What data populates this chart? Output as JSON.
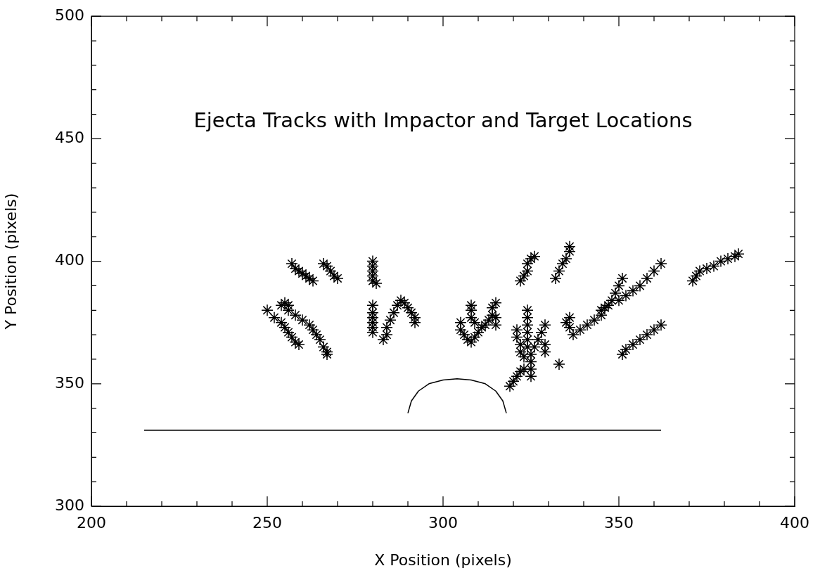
{
  "chart_data": {
    "type": "scatter",
    "title": "Ejecta Tracks with Impactor and Target Locations",
    "xlabel": "X Position (pixels)",
    "ylabel": "Y Position (pixels)",
    "xlim": [
      200,
      400
    ],
    "ylim": [
      300,
      500
    ],
    "xticks": [
      200,
      {
        "value": 210,
        "label": null
      },
      {
        "value": 220,
        "label": null
      },
      {
        "value": 230,
        "label": null
      },
      {
        "value": 240,
        "label": null
      },
      250,
      {
        "value": 260,
        "label": null
      },
      {
        "value": 270,
        "label": null
      },
      {
        "value": 280,
        "label": null
      },
      {
        "value": 290,
        "label": null
      },
      300,
      {
        "value": 310,
        "label": null
      },
      {
        "value": 320,
        "label": null
      },
      {
        "value": 330,
        "label": null
      },
      {
        "value": 340,
        "label": null
      },
      350,
      {
        "value": 360,
        "label": null
      },
      {
        "value": 370,
        "label": null
      },
      {
        "value": 380,
        "label": null
      },
      {
        "value": 390,
        "label": null
      },
      400
    ],
    "yticks": [
      300,
      {
        "value": 310,
        "label": null
      },
      {
        "value": 320,
        "label": null
      },
      {
        "value": 330,
        "label": null
      },
      {
        "value": 340,
        "label": null
      },
      350,
      {
        "value": 360,
        "label": null
      },
      {
        "value": 370,
        "label": null
      },
      {
        "value": 380,
        "label": null
      },
      {
        "value": 390,
        "label": null
      },
      400,
      {
        "value": 410,
        "label": null
      },
      {
        "value": 420,
        "label": null
      },
      {
        "value": 430,
        "label": null
      },
      {
        "value": 440,
        "label": null
      },
      450,
      {
        "value": 460,
        "label": null
      },
      {
        "value": 470,
        "label": null
      },
      {
        "value": 480,
        "label": null
      },
      {
        "value": 490,
        "label": null
      },
      500
    ],
    "grid": false,
    "legend": false,
    "series": [
      {
        "type": "scatter",
        "color": "#000000",
        "marker": "cross",
        "x": [
          257,
          258,
          259,
          260,
          261,
          262,
          263,
          266,
          267,
          268,
          269,
          270,
          280,
          280,
          280,
          280,
          280,
          281,
          250,
          252,
          254,
          255,
          256,
          257,
          258,
          259,
          254,
          255,
          256,
          256,
          258,
          260,
          262,
          263,
          264,
          265,
          266,
          267,
          267,
          280,
          280,
          280,
          280,
          280,
          280,
          283,
          284,
          284,
          285,
          286,
          287,
          288,
          289,
          290,
          291,
          292,
          292,
          305,
          305,
          306,
          307,
          308,
          309,
          310,
          311,
          308,
          308,
          308,
          309,
          312,
          313,
          314,
          314,
          315,
          315,
          315,
          322,
          323,
          324,
          324,
          325,
          326,
          332,
          333,
          334,
          335,
          336,
          336,
          321,
          321,
          322,
          322,
          323,
          324,
          324,
          324,
          324,
          324,
          324,
          325,
          325,
          325,
          325,
          326,
          327,
          328,
          329,
          329,
          329,
          333,
          319,
          320,
          321,
          322,
          323,
          335,
          336,
          336,
          337,
          339,
          341,
          343,
          345,
          346,
          348,
          349,
          350,
          351,
          345,
          347,
          350,
          352,
          354,
          356,
          358,
          360,
          362,
          351,
          352,
          354,
          356,
          358,
          360,
          362,
          371,
          372,
          373,
          375,
          377,
          379,
          381,
          383,
          384
        ],
        "values": [
          399,
          397,
          396,
          395,
          394,
          393,
          392,
          399,
          398,
          396,
          394,
          393,
          400,
          398,
          396,
          394,
          392,
          391,
          380,
          377,
          375,
          373,
          371,
          369,
          367,
          366,
          382,
          383,
          382,
          380,
          378,
          376,
          374,
          372,
          370,
          368,
          365,
          363,
          362,
          382,
          379,
          377,
          375,
          373,
          371,
          368,
          370,
          373,
          376,
          379,
          382,
          384,
          383,
          381,
          379,
          377,
          375,
          375,
          372,
          370,
          368,
          367,
          369,
          371,
          373,
          380,
          382,
          377,
          375,
          374,
          376,
          378,
          381,
          383,
          377,
          374,
          392,
          394,
          396,
          399,
          401,
          402,
          393,
          396,
          399,
          401,
          404,
          406,
          372,
          369,
          366,
          363,
          361,
          380,
          377,
          374,
          371,
          368,
          365,
          362,
          359,
          356,
          353,
          365,
          368,
          371,
          374,
          366,
          363,
          358,
          349,
          351,
          353,
          355,
          356,
          375,
          377,
          373,
          370,
          372,
          374,
          376,
          378,
          381,
          384,
          387,
          390,
          393,
          380,
          382,
          384,
          386,
          388,
          390,
          393,
          396,
          399,
          362,
          364,
          366,
          368,
          370,
          372,
          374,
          392,
          394,
          396,
          397,
          398,
          400,
          401,
          402,
          403
        ]
      },
      {
        "type": "line",
        "color": "#000000",
        "marker": "none",
        "x": [
          215,
          362
        ],
        "values": [
          331,
          331
        ]
      },
      {
        "type": "line",
        "color": "#000000",
        "marker": "none",
        "x": [
          290,
          291,
          293,
          296,
          300,
          304,
          308,
          312,
          315,
          317,
          318
        ],
        "values": [
          338,
          343,
          347,
          350,
          351.5,
          352,
          351.5,
          350,
          347,
          343,
          338
        ]
      }
    ]
  }
}
